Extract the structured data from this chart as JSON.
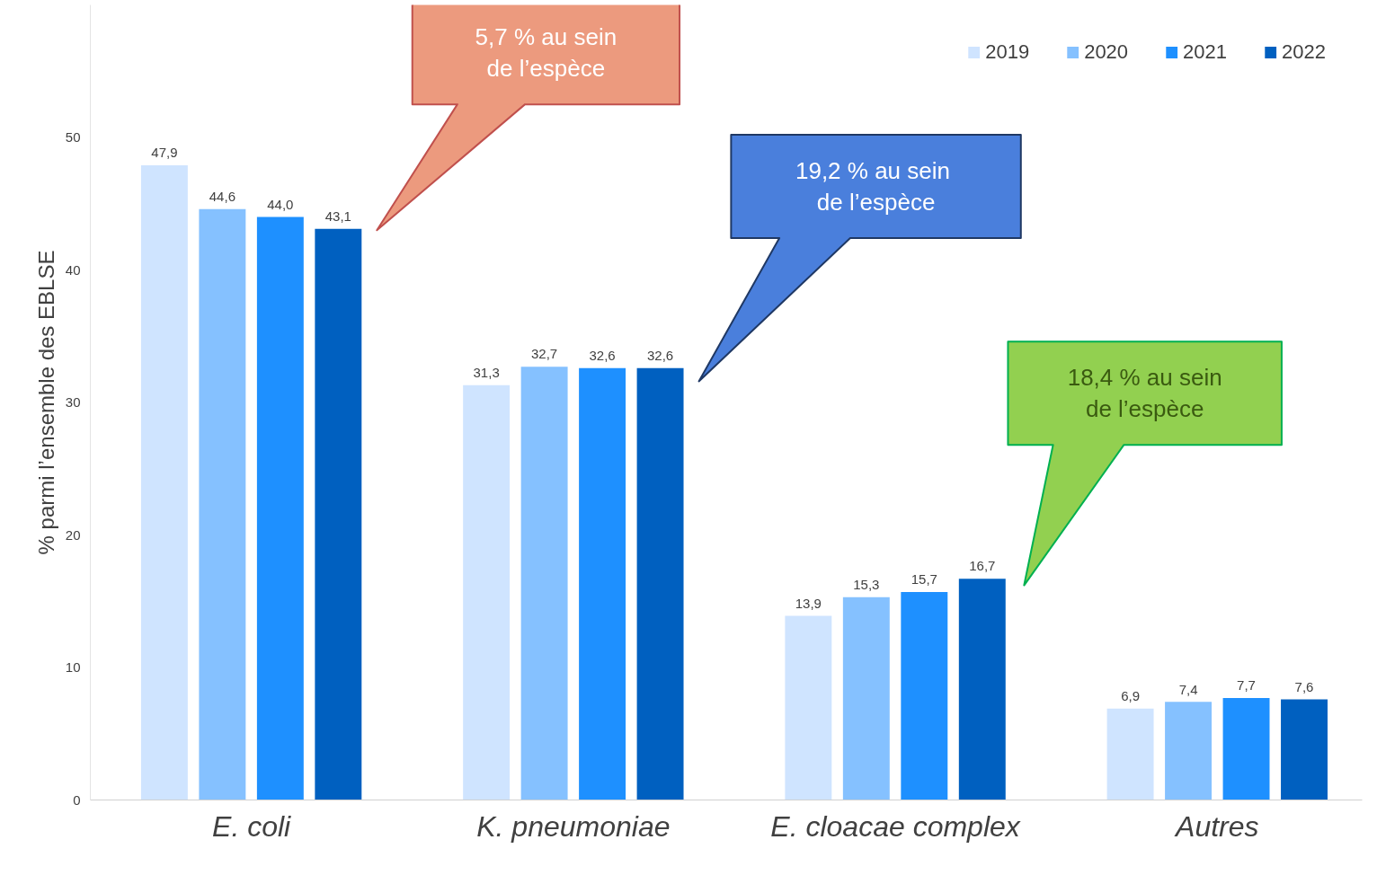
{
  "chart_data": {
    "type": "bar",
    "ylabel": "% parmi l’ensemble des EBLSE",
    "categories": [
      "E. coli",
      "K. pneumoniae",
      "E. cloacae complex",
      "Autres"
    ],
    "series": [
      {
        "name": "2019",
        "color": "#cfe4ff",
        "values": [
          47.9,
          31.3,
          13.9,
          6.9
        ],
        "value_labels": [
          "47,9",
          "31,3",
          "13,9",
          "6,9"
        ]
      },
      {
        "name": "2020",
        "color": "#85c1ff",
        "values": [
          44.6,
          32.7,
          15.3,
          7.4
        ],
        "value_labels": [
          "44,6",
          "32,7",
          "15,3",
          "7,4"
        ]
      },
      {
        "name": "2021",
        "color": "#1e90ff",
        "values": [
          44.0,
          32.6,
          15.7,
          7.7
        ],
        "value_labels": [
          "44,0",
          "32,6",
          "15,7",
          "7,7"
        ]
      },
      {
        "name": "2022",
        "color": "#0060c0",
        "values": [
          43.1,
          32.6,
          16.7,
          7.6
        ],
        "value_labels": [
          "43,1",
          "32,6",
          "16,7",
          "7,6"
        ]
      }
    ],
    "annotations": [
      "5,7 % au sein\nde l’espèce",
      "19,2  % au sein\nde l’espèce",
      "18,4 % au sein\nde l’espèce"
    ],
    "ylim": [
      0,
      60
    ],
    "yticks": [
      0,
      10,
      20,
      30,
      40,
      50
    ],
    "grid": false,
    "legend": "top right"
  }
}
